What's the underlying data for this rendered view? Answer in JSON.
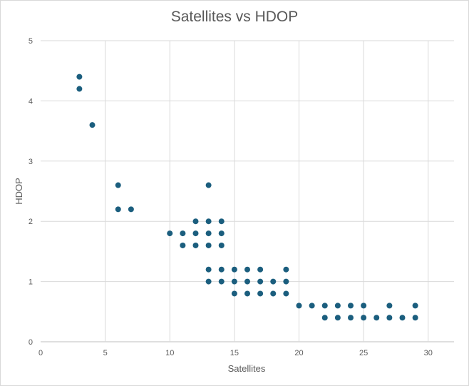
{
  "chart_data": {
    "type": "scatter",
    "title": "Satellites vs HDOP",
    "xlabel": "Satellites",
    "ylabel": "HDOP",
    "xlim": [
      0,
      32
    ],
    "ylim": [
      0,
      5
    ],
    "xticks": [
      "0",
      "5",
      "10",
      "15",
      "20",
      "25",
      "30"
    ],
    "yticks": [
      "0",
      "1",
      "2",
      "3",
      "4",
      "5"
    ],
    "grid": true,
    "legend": "none",
    "marker_color": "#1b5e7e",
    "points": [
      {
        "x": 3,
        "y": 4.4
      },
      {
        "x": 3,
        "y": 4.2
      },
      {
        "x": 4,
        "y": 3.6
      },
      {
        "x": 6,
        "y": 2.6
      },
      {
        "x": 6,
        "y": 2.2
      },
      {
        "x": 7,
        "y": 2.2
      },
      {
        "x": 10,
        "y": 1.8
      },
      {
        "x": 11,
        "y": 1.8
      },
      {
        "x": 11,
        "y": 1.6
      },
      {
        "x": 12,
        "y": 2.0
      },
      {
        "x": 12,
        "y": 1.8
      },
      {
        "x": 12,
        "y": 1.6
      },
      {
        "x": 13,
        "y": 2.6
      },
      {
        "x": 13,
        "y": 2.0
      },
      {
        "x": 13,
        "y": 1.8
      },
      {
        "x": 13,
        "y": 1.6
      },
      {
        "x": 13,
        "y": 1.2
      },
      {
        "x": 13,
        "y": 1.0
      },
      {
        "x": 14,
        "y": 2.0
      },
      {
        "x": 14,
        "y": 1.8
      },
      {
        "x": 14,
        "y": 1.6
      },
      {
        "x": 14,
        "y": 1.2
      },
      {
        "x": 14,
        "y": 1.0
      },
      {
        "x": 15,
        "y": 1.2
      },
      {
        "x": 15,
        "y": 1.0
      },
      {
        "x": 15,
        "y": 0.8
      },
      {
        "x": 16,
        "y": 1.2
      },
      {
        "x": 16,
        "y": 1.0
      },
      {
        "x": 16,
        "y": 0.8
      },
      {
        "x": 17,
        "y": 1.2
      },
      {
        "x": 17,
        "y": 1.0
      },
      {
        "x": 17,
        "y": 0.8
      },
      {
        "x": 18,
        "y": 1.0
      },
      {
        "x": 18,
        "y": 0.8
      },
      {
        "x": 19,
        "y": 1.2
      },
      {
        "x": 19,
        "y": 1.0
      },
      {
        "x": 19,
        "y": 0.8
      },
      {
        "x": 20,
        "y": 0.6
      },
      {
        "x": 21,
        "y": 0.6
      },
      {
        "x": 22,
        "y": 0.6
      },
      {
        "x": 22,
        "y": 0.4
      },
      {
        "x": 23,
        "y": 0.6
      },
      {
        "x": 23,
        "y": 0.4
      },
      {
        "x": 24,
        "y": 0.6
      },
      {
        "x": 24,
        "y": 0.4
      },
      {
        "x": 25,
        "y": 0.6
      },
      {
        "x": 25,
        "y": 0.4
      },
      {
        "x": 26,
        "y": 0.4
      },
      {
        "x": 27,
        "y": 0.6
      },
      {
        "x": 27,
        "y": 0.4
      },
      {
        "x": 28,
        "y": 0.4
      },
      {
        "x": 29,
        "y": 0.6
      },
      {
        "x": 29,
        "y": 0.4
      }
    ]
  }
}
